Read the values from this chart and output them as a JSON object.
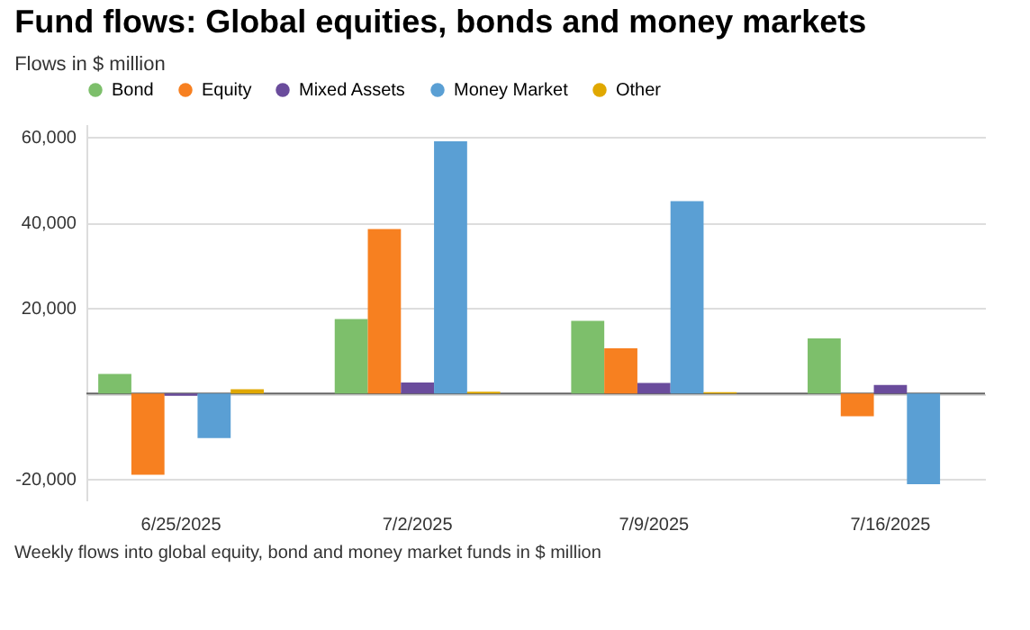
{
  "chart_data": {
    "type": "bar",
    "title": "Fund flows: Global equities, bonds and money markets",
    "subtitle": "Flows in $ million",
    "categories": [
      "6/25/2025",
      "7/2/2025",
      "7/9/2025",
      "7/16/2025"
    ],
    "series": [
      {
        "name": "Bond",
        "color": "#7dbf6b",
        "values": [
          4600,
          17400,
          17000,
          12900
        ]
      },
      {
        "name": "Equity",
        "color": "#f78020",
        "values": [
          -19000,
          38500,
          10600,
          -5300
        ]
      },
      {
        "name": "Mixed Assets",
        "color": "#6a4c9c",
        "values": [
          -500,
          2600,
          2500,
          2000
        ]
      },
      {
        "name": "Money Market",
        "color": "#5a9fd4",
        "values": [
          -10400,
          59000,
          45000,
          -21200
        ]
      },
      {
        "name": "Other",
        "color": "#e0a800",
        "values": [
          1000,
          400,
          300,
          0
        ]
      }
    ],
    "ylim": [
      -25000,
      63000
    ],
    "yticks": [
      {
        "value": -20000,
        "label": "-20,000"
      },
      {
        "value": 0,
        "label": null
      },
      {
        "value": 20000,
        "label": "20,000"
      },
      {
        "value": 40000,
        "label": "40,000"
      },
      {
        "value": 60000,
        "label": "60,000"
      }
    ],
    "grid": "y",
    "legend": "top",
    "annotations": [
      "Weekly flows into global equity, bond and money market funds in $ million"
    ]
  }
}
